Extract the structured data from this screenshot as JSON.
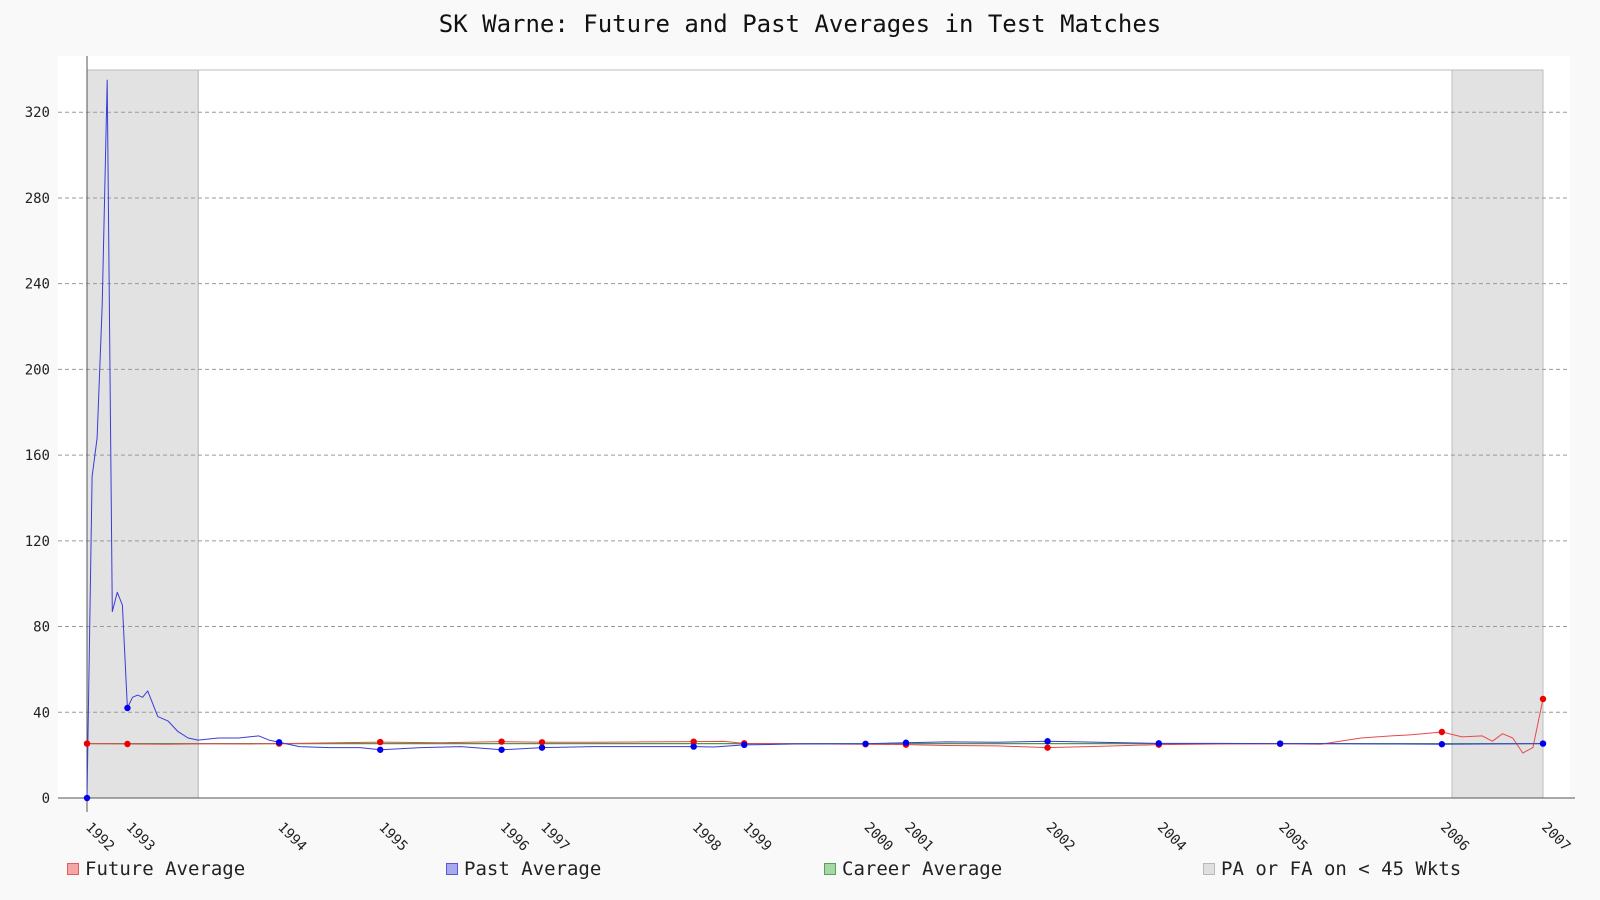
{
  "chart_data": {
    "type": "line",
    "title": "SK Warne: Future and Past Averages in Test Matches",
    "y_ticks": [
      "0",
      "40",
      "80",
      "120",
      "160",
      "200",
      "240",
      "280",
      "320"
    ],
    "ylim": [
      0,
      340
    ],
    "xlim": [
      0,
      144
    ],
    "grid": "horizontal dashed",
    "legend_position": "bottom",
    "x_tick_labels": [
      {
        "label": "1992",
        "x": 0
      },
      {
        "label": "1993",
        "x": 4
      },
      {
        "label": "1994",
        "x": 19
      },
      {
        "label": "1995",
        "x": 29
      },
      {
        "label": "1996",
        "x": 41
      },
      {
        "label": "1997",
        "x": 45
      },
      {
        "label": "1998",
        "x": 60
      },
      {
        "label": "1999",
        "x": 65
      },
      {
        "label": "2000",
        "x": 77
      },
      {
        "label": "2001",
        "x": 81
      },
      {
        "label": "2002",
        "x": 95
      },
      {
        "label": "2004",
        "x": 106
      },
      {
        "label": "2005",
        "x": 118
      },
      {
        "label": "2006",
        "x": 134
      },
      {
        "label": "2007",
        "x": 144
      }
    ],
    "shaded_regions": [
      [
        0,
        11
      ],
      [
        135,
        144
      ]
    ],
    "career_average": 25.4,
    "series": [
      {
        "name": "Future Average",
        "color": "#e84a4a",
        "x": [
          0,
          2,
          4,
          8,
          12,
          16,
          19,
          24,
          29,
          35,
          41,
          45,
          50,
          55,
          60,
          63,
          65,
          70,
          77,
          81,
          85,
          90,
          95,
          100,
          106,
          112,
          118,
          122,
          126,
          129,
          131,
          134,
          136,
          138,
          139,
          140,
          141,
          142,
          143,
          144
        ],
        "y": [
          25.4,
          25.3,
          25.2,
          25.1,
          25.3,
          25.2,
          25.4,
          25.7,
          26.1,
          25.8,
          26.3,
          26.0,
          26.0,
          26.2,
          26.3,
          26.4,
          25.5,
          25.3,
          25.1,
          24.9,
          24.5,
          24.3,
          23.5,
          24.1,
          24.9,
          25.2,
          25.3,
          25.1,
          28.0,
          29.0,
          29.5,
          30.8,
          28.5,
          29.0,
          26.5,
          30.0,
          28.0,
          21.0,
          23.5,
          46.2
        ]
      },
      {
        "name": "Past Average",
        "color": "#3b3bd9",
        "x": [
          0,
          0.5,
          1,
          1.5,
          2,
          2.5,
          3,
          3.5,
          4,
          4.5,
          5,
          5.5,
          6,
          7,
          8,
          9,
          10,
          11,
          13,
          15,
          17,
          18,
          19,
          21,
          24,
          27,
          29,
          33,
          37,
          41,
          45,
          50,
          55,
          60,
          62,
          65,
          70,
          77,
          81,
          85,
          90,
          95,
          100,
          106,
          112,
          118,
          122,
          128,
          134,
          144
        ],
        "y": [
          0,
          150,
          168,
          230,
          335,
          87,
          96,
          90,
          42,
          47,
          48,
          47,
          50,
          38,
          36,
          31,
          28,
          27,
          28,
          28,
          29,
          27,
          26,
          24,
          23.5,
          23.5,
          22.5,
          23.5,
          24,
          22.5,
          23.5,
          24,
          24,
          24,
          23.8,
          24.8,
          25.2,
          25.3,
          25.8,
          26.2,
          26,
          26.5,
          26,
          25.5,
          25.5,
          25.4,
          25.4,
          25.2,
          25.1,
          25.4
        ]
      },
      {
        "name": "Career Average",
        "color": "#4a9a4a",
        "x": [
          0,
          144
        ],
        "y": [
          25.4,
          25.4
        ]
      }
    ],
    "markers": {
      "future_color": "#ee0000",
      "past_color": "#0000ee",
      "future": [
        [
          0,
          25.4
        ],
        [
          4,
          25.2
        ],
        [
          19,
          25.4
        ],
        [
          29,
          26.1
        ],
        [
          41,
          26.3
        ],
        [
          45,
          26.0
        ],
        [
          60,
          26.3
        ],
        [
          65,
          25.5
        ],
        [
          77,
          25.1
        ],
        [
          81,
          24.9
        ],
        [
          95,
          23.5
        ],
        [
          106,
          24.9
        ],
        [
          118,
          25.3
        ],
        [
          134,
          30.8
        ],
        [
          144,
          46.2
        ]
      ],
      "past": [
        [
          0,
          0
        ],
        [
          4,
          42
        ],
        [
          19,
          26
        ],
        [
          29,
          22.5
        ],
        [
          41,
          22.5
        ],
        [
          45,
          23.5
        ],
        [
          60,
          24
        ],
        [
          65,
          24.8
        ],
        [
          77,
          25.3
        ],
        [
          81,
          25.8
        ],
        [
          95,
          26.5
        ],
        [
          106,
          25.5
        ],
        [
          118,
          25.4
        ],
        [
          134,
          25.1
        ],
        [
          144,
          25.4
        ]
      ]
    }
  },
  "legend": [
    {
      "label": "Future Average",
      "fill": "#f4a6a6",
      "border": "#e06060"
    },
    {
      "label": "Past Average",
      "fill": "#a9a9f0",
      "border": "#5a5ad0"
    },
    {
      "label": "Career Average",
      "fill": "#a6d8a6",
      "border": "#5aa05a"
    },
    {
      "label": "PA or FA on < 45 Wkts",
      "fill": "#e0e0e0",
      "border": "#b8b8b8"
    }
  ]
}
